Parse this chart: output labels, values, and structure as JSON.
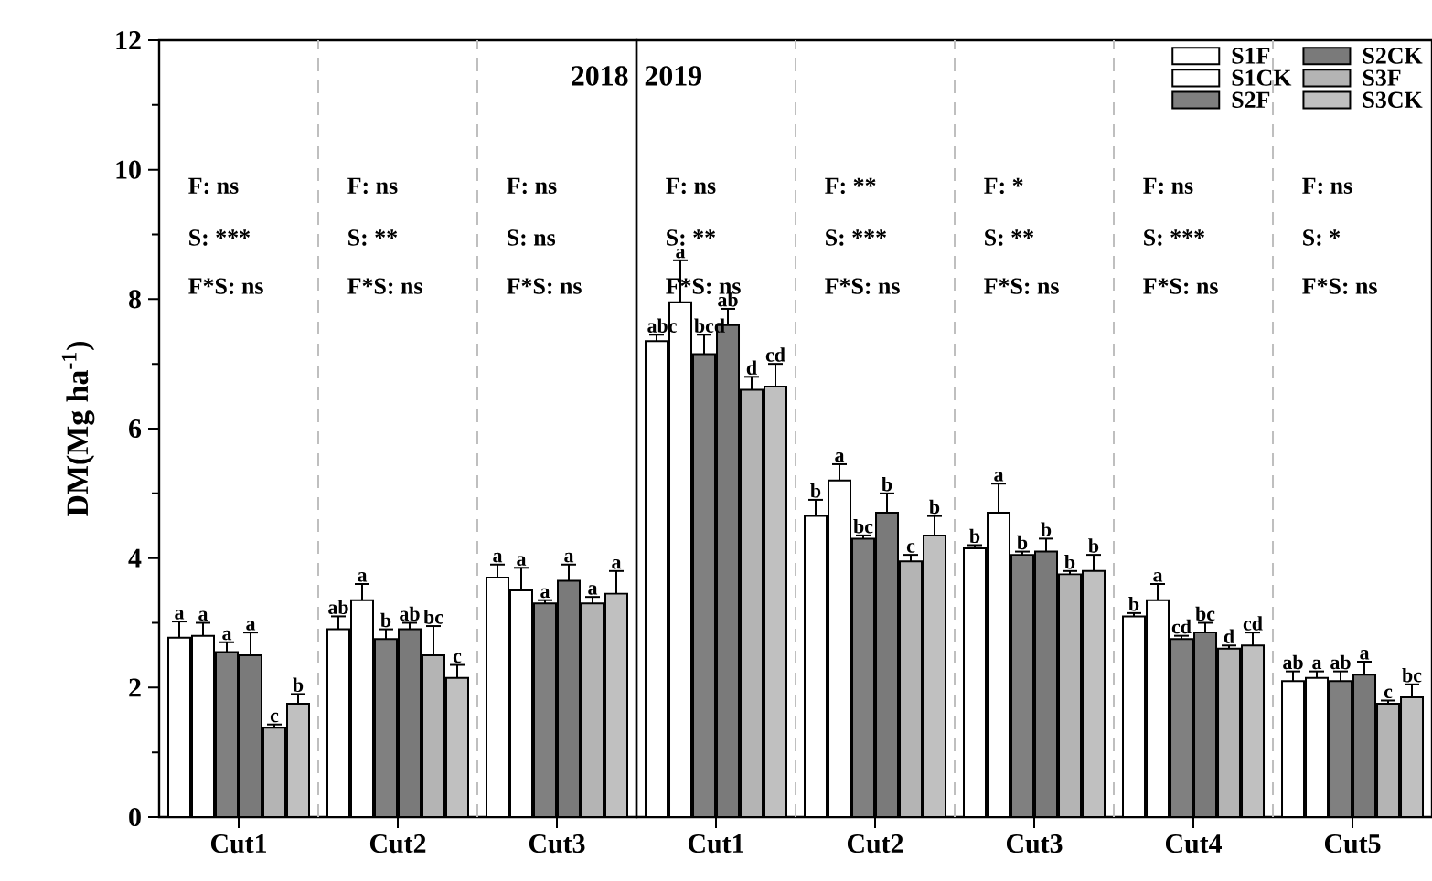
{
  "chart_data": [
    {
      "type": "bar",
      "ylabel": "DM(Mg ha$^{-1}$)",
      "categories": [
        "Cut1",
        "Cut2",
        "Cut3"
      ],
      "ylim": [
        0,
        12
      ],
      "yticks": [
        0,
        2,
        4,
        6,
        8,
        10,
        12
      ],
      "series": [
        {
          "color": "#ffffff",
          "values": [
            2.77,
            2.9,
            3.7
          ],
          "errors": [
            0.25,
            0.2,
            0.2
          ],
          "value_labels": [
            "a",
            "ab",
            "a"
          ]
        },
        {
          "color": "#ffffff",
          "values": [
            2.8,
            3.35,
            3.5
          ],
          "errors": [
            0.2,
            0.25,
            0.35
          ],
          "value_labels": [
            "a",
            "a",
            "a"
          ]
        },
        {
          "color": "#808080",
          "values": [
            2.55,
            2.75,
            3.3
          ],
          "errors": [
            0.15,
            0.15,
            0.05
          ],
          "value_labels": [
            "a",
            "b",
            "a"
          ]
        },
        {
          "color": "#7a7a7a",
          "values": [
            2.5,
            2.9,
            3.65
          ],
          "errors": [
            0.35,
            0.1,
            0.25
          ],
          "value_labels": [
            "a",
            "ab",
            "a"
          ]
        },
        {
          "color": "#b4b4b4",
          "values": [
            1.38,
            2.5,
            3.3
          ],
          "errors": [
            0.05,
            0.45,
            0.1
          ],
          "value_labels": [
            "c",
            "bc",
            "a"
          ]
        },
        {
          "color": "#c0c0c0",
          "values": [
            1.75,
            2.15,
            3.45
          ],
          "errors": [
            0.15,
            0.2,
            0.35
          ],
          "value_labels": [
            "b",
            "c",
            "a"
          ]
        }
      ],
      "annotations": [
        "F: ns",
        "S: ***",
        "F*S: ns",
        "F: ns",
        "S: **",
        "F*S: ns",
        "F: ns",
        "S: ns",
        "F*S: ns",
        "2018"
      ]
    },
    {
      "type": "bar",
      "categories": [
        "Cut1",
        "Cut2",
        "Cut3",
        "Cut4",
        "Cut5"
      ],
      "ylim": [
        0,
        12
      ],
      "tick_labels": "x",
      "legend": "top right",
      "series": [
        {
          "name": "S1F",
          "color": "#ffffff",
          "values": [
            7.35,
            4.65,
            4.15,
            3.1,
            2.1
          ],
          "errors": [
            0.1,
            0.25,
            0.05,
            0.05,
            0.15
          ],
          "value_labels": [
            "abc",
            "b",
            "b",
            "b",
            "ab"
          ]
        },
        {
          "name": "S1CK",
          "color": "#ffffff",
          "values": [
            7.95,
            5.2,
            4.7,
            3.35,
            2.15
          ],
          "errors": [
            0.65,
            0.25,
            0.45,
            0.25,
            0.1
          ],
          "value_labels": [
            "a",
            "a",
            "a",
            "a",
            "a"
          ]
        },
        {
          "name": "S2F",
          "color": "#808080",
          "values": [
            7.15,
            4.3,
            4.05,
            2.75,
            2.1
          ],
          "errors": [
            0.3,
            0.05,
            0.05,
            0.05,
            0.15
          ],
          "value_labels": [
            "bcd",
            "bc",
            "b",
            "cd",
            "ab"
          ]
        },
        {
          "name": "S2CK",
          "color": "#7a7a7a",
          "values": [
            7.6,
            4.7,
            4.1,
            2.85,
            2.2
          ],
          "errors": [
            0.25,
            0.3,
            0.2,
            0.15,
            0.2
          ],
          "value_labels": [
            "ab",
            "b",
            "b",
            "bc",
            "a"
          ]
        },
        {
          "name": "S3F",
          "color": "#b4b4b4",
          "values": [
            6.6,
            3.95,
            3.75,
            2.6,
            1.75
          ],
          "errors": [
            0.2,
            0.1,
            0.05,
            0.05,
            0.05
          ],
          "value_labels": [
            "d",
            "c",
            "b",
            "d",
            "c"
          ]
        },
        {
          "name": "S3CK",
          "color": "#c0c0c0",
          "values": [
            6.65,
            4.35,
            3.8,
            2.65,
            1.85
          ],
          "errors": [
            0.35,
            0.3,
            0.25,
            0.2,
            0.2
          ],
          "value_labels": [
            "cd",
            "b",
            "b",
            "cd",
            "bc"
          ]
        }
      ],
      "annotations": [
        "F: ns",
        "S: **",
        "F*S: ns",
        "F: **",
        "S: ***",
        "F*S: ns",
        "F: *",
        "S: **",
        "F*S: ns",
        "F: ns",
        "S: ***",
        "F*S: ns",
        "F: ns",
        "S: *",
        "F*S: ns",
        "2019"
      ]
    }
  ]
}
